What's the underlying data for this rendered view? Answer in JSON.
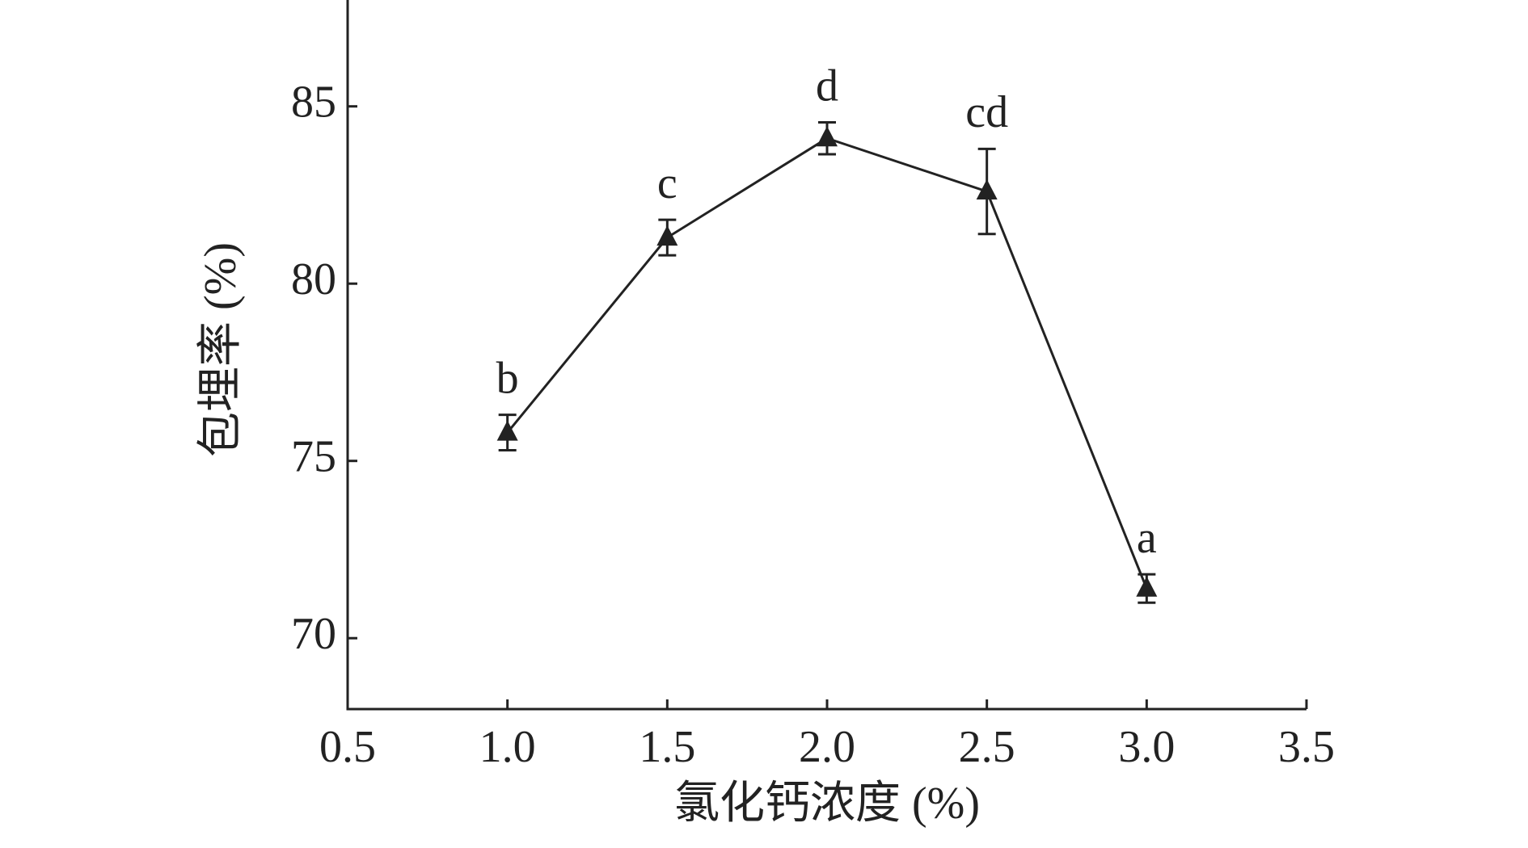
{
  "chart_data": {
    "type": "line",
    "xlabel": "氯化钙浓度 (%)",
    "ylabel": "包埋率 (%)",
    "x": [
      1.0,
      1.5,
      2.0,
      2.5,
      3.0
    ],
    "series": [
      {
        "values": [
          75.8,
          81.3,
          84.1,
          82.6,
          71.4
        ],
        "errors": [
          0.5,
          0.5,
          0.45,
          1.2,
          0.4
        ],
        "labels": [
          "b",
          "c",
          "d",
          "cd",
          "a"
        ],
        "color": "#222222",
        "marker": "triangle"
      }
    ],
    "xlim": [
      0.5,
      3.5
    ],
    "ylim": [
      68,
      88
    ],
    "xticks": [
      0.5,
      {
        "value": 1,
        "label": "1.0"
      },
      1.5,
      {
        "value": 2,
        "label": "2.0"
      },
      2.5,
      {
        "value": 3,
        "label": "3.0"
      },
      3.5
    ],
    "yticks": [
      70,
      75,
      80,
      85
    ],
    "grid": false
  }
}
